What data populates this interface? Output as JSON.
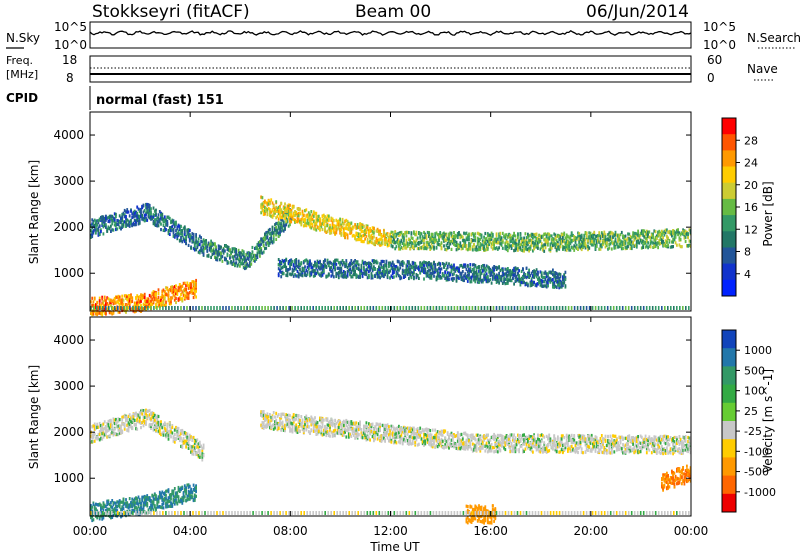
{
  "header": {
    "station": "Stokkseyri (fitACF)",
    "beam": "Beam 00",
    "date": "06/Jun/2014"
  },
  "noise_panel": {
    "left_label": "N.Sky",
    "right_label": "N.Search",
    "left_ticks": [
      "10^5",
      "10^0"
    ],
    "right_ticks": [
      "10^5",
      "10^0"
    ]
  },
  "freq_panel": {
    "label_line1": "Freq.",
    "label_line2": "[MHz]",
    "left_ticks": [
      "18",
      "8"
    ],
    "right_label": "Nave",
    "right_ticks": [
      "60",
      "0"
    ]
  },
  "cpid": {
    "label": "CPID",
    "value": "normal (fast) 151"
  },
  "axes": {
    "ylabel": "Slant Range [km]",
    "yticks": [
      "4000",
      "3000",
      "2000",
      "1000"
    ],
    "xlabel": "Time UT",
    "xticks": [
      "00:00",
      "04:00",
      "08:00",
      "12:00",
      "16:00",
      "20:00",
      "00:00"
    ]
  },
  "power_colorbar": {
    "label": "Power [dB]",
    "ticks": [
      "28",
      "24",
      "20",
      "16",
      "12",
      "8",
      "4"
    ],
    "colors": [
      "#ff0000",
      "#ff5500",
      "#ff9900",
      "#ffcc00",
      "#cccc33",
      "#66bb44",
      "#339966",
      "#227766",
      "#225599",
      "#1133cc",
      "#0022ff"
    ]
  },
  "velocity_colorbar": {
    "label": "Velocity [m s^-1]",
    "ticks": [
      "1000",
      "500",
      "100",
      "25",
      "-25",
      "-100",
      "-500",
      "-1000"
    ],
    "colors": [
      "#1144bb",
      "#2277aa",
      "#339966",
      "#33aa44",
      "#66cc33",
      "#c8c8c8",
      "#ffcc00",
      "#ff9900",
      "#ff6600",
      "#ee0000"
    ]
  },
  "chart_data": {
    "type": "heatmap",
    "x_range": [
      "00:00",
      "24:00"
    ],
    "y_range_km": [
      180,
      4500
    ],
    "power_echo_bands": [
      {
        "t_start": 0.0,
        "t_end": 4.5,
        "range_start_km": 2000,
        "range_mid_km": 2350,
        "range_end_km": 1600,
        "power_db": 8
      },
      {
        "t_start": 4.5,
        "t_end": 8.0,
        "range_start_km": 1600,
        "range_mid_km": 1300,
        "range_end_km": 2300,
        "power_db": 10
      },
      {
        "t_start": 6.8,
        "t_end": 12.0,
        "range_start_km": 2500,
        "range_mid_km": 2100,
        "range_end_km": 1750,
        "power_db": 20
      },
      {
        "t_start": 12.0,
        "t_end": 24.0,
        "range_start_km": 1750,
        "range_mid_km": 1700,
        "range_end_km": 1800,
        "power_db": 14
      },
      {
        "t_start": 7.5,
        "t_end": 19.0,
        "range_start_km": 1150,
        "range_mid_km": 1100,
        "range_end_km": 900,
        "power_db": 8
      },
      {
        "t_start": 0.0,
        "t_end": 4.2,
        "range_start_km": 300,
        "range_mid_km": 400,
        "range_end_km": 700,
        "power_db": 24
      }
    ],
    "velocity_echo_bands": [
      {
        "t_start": 0.0,
        "t_end": 4.5,
        "range_start_km": 2000,
        "range_mid_km": 2350,
        "range_end_km": 1600,
        "velocity": 0
      },
      {
        "t_start": 6.8,
        "t_end": 24.0,
        "range_start_km": 2300,
        "range_mid_km": 1800,
        "range_end_km": 1750,
        "velocity": 0
      },
      {
        "t_start": 0.0,
        "t_end": 4.2,
        "range_start_km": 300,
        "range_mid_km": 450,
        "range_end_km": 750,
        "velocity": 300
      },
      {
        "t_start": 15.0,
        "t_end": 16.2,
        "range_start_km": 250,
        "range_mid_km": 250,
        "range_end_km": 250,
        "velocity": -200
      },
      {
        "t_start": 22.8,
        "t_end": 24.0,
        "range_start_km": 950,
        "range_mid_km": 1050,
        "range_end_km": 1150,
        "velocity": -300
      }
    ]
  }
}
